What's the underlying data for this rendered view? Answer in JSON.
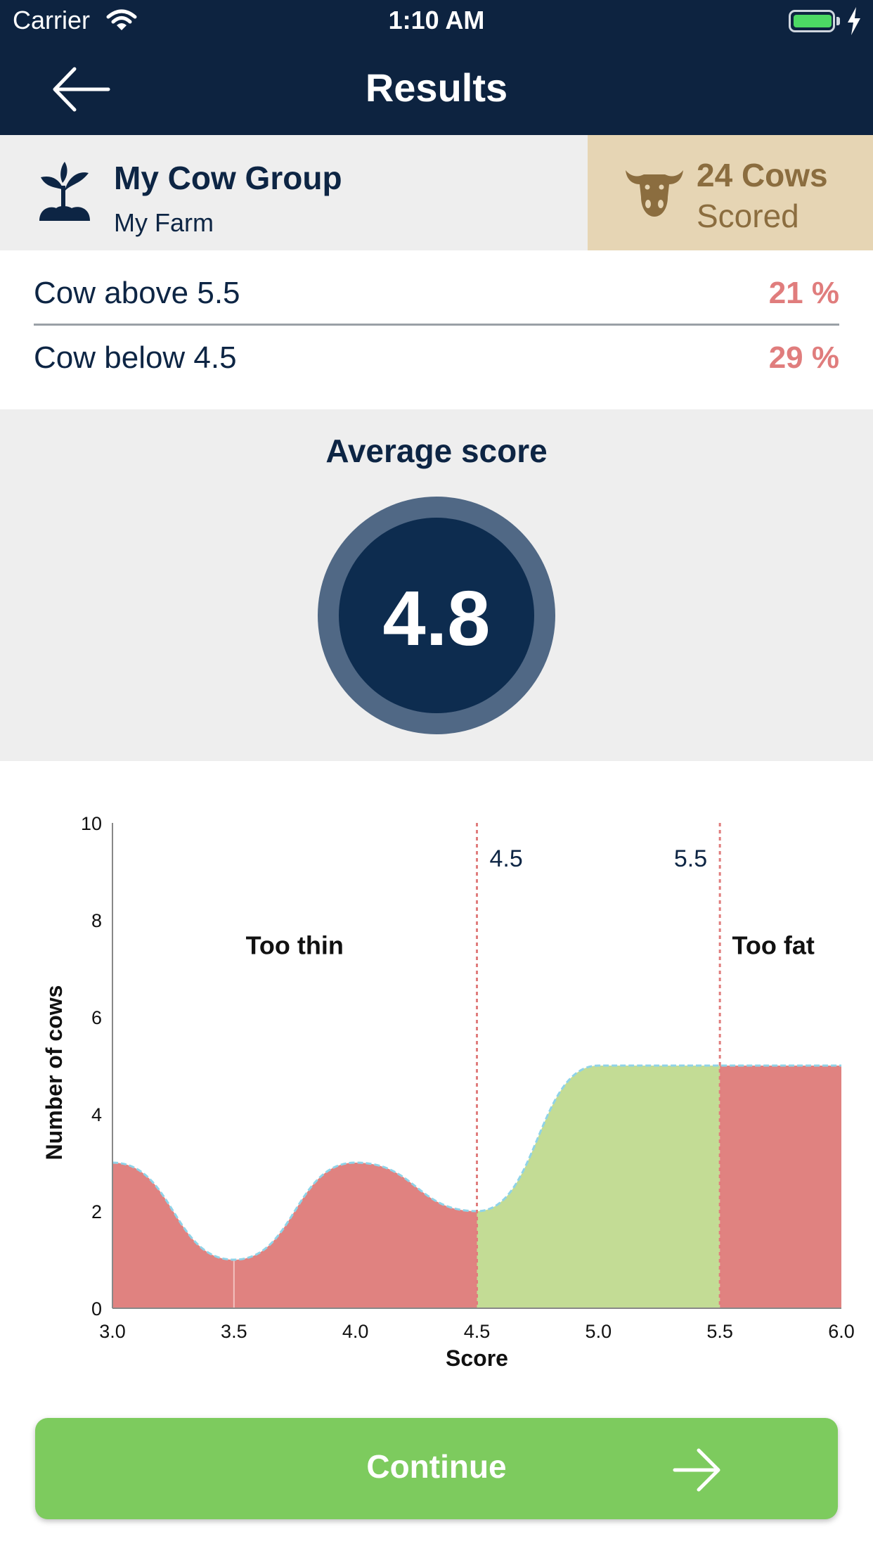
{
  "status_bar": {
    "carrier": "Carrier",
    "time": "1:10 AM",
    "battery_level": 1.0
  },
  "nav": {
    "title": "Results",
    "back_icon": "arrow-left-icon"
  },
  "group": {
    "name": "My Cow Group",
    "farm": "My Farm",
    "icon": "plant-sprout-icon",
    "cows_count": "24 Cows",
    "cows_scored": "Scored",
    "cow_icon": "cow-head-icon"
  },
  "stats": [
    {
      "label": "Cow above 5.5",
      "value": "21 %"
    },
    {
      "label": "Cow below 4.5",
      "value": "29 %"
    }
  ],
  "average": {
    "title": "Average score",
    "value": "4.8"
  },
  "chart_data": {
    "type": "area",
    "xlabel": "Score",
    "ylabel": "Number of cows",
    "x": [
      3.0,
      3.5,
      4.0,
      4.5,
      5.0,
      5.5,
      6.0
    ],
    "series": [
      {
        "values": [
          3,
          1,
          3,
          2,
          5,
          5,
          5
        ]
      }
    ],
    "xlim": [
      3.0,
      6.0
    ],
    "ylim": [
      0,
      10
    ],
    "x_ticks": [
      "3.0",
      "3.5",
      "4.0",
      "4.5",
      "5.0",
      "5.5",
      "6.0"
    ],
    "y_ticks": [
      "0",
      "2",
      "4",
      "6",
      "8",
      "10"
    ],
    "thresholds": [
      {
        "x": 4.5,
        "label": "4.5"
      },
      {
        "x": 5.5,
        "label": "5.5"
      }
    ],
    "zones": [
      {
        "label": "Too thin",
        "x": 3.75
      },
      {
        "label": "Too fat",
        "x": 5.72
      }
    ],
    "colors": {
      "out_of_range": "#e08280",
      "in_range": "#c3dc95",
      "threshold": "#e07d7d",
      "curve": "#8fd3e8"
    }
  },
  "continue_button": {
    "label": "Continue",
    "icon": "arrow-right-icon"
  }
}
